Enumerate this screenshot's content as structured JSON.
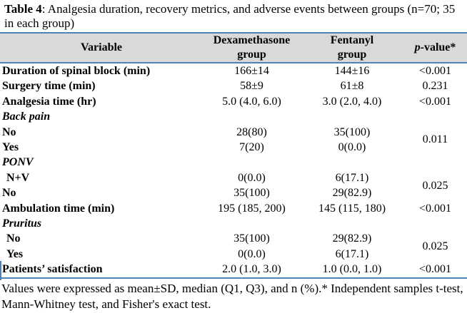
{
  "colors": {
    "rule_blue": "#4f81bd",
    "header_bg": "#d9d9d9",
    "text": "#000000"
  },
  "caption": {
    "label": "Table 4",
    "text": ": Analgesia duration, recovery metrics, and adverse events between groups (n=70; 35 in each group)"
  },
  "header": {
    "variable": "Variable",
    "dexamethasone": "Dexamethasone\ngroup",
    "fentanyl": "Fentanyl\ngroup",
    "pvalue_italic": "p",
    "pvalue_rest": "-value*"
  },
  "rows": [
    {
      "label": "Duration of spinal block (min)",
      "dexa": "166±14",
      "fent": "144±16",
      "p": "<0.001"
    },
    {
      "label": "Surgery time (min)",
      "dexa": "58±9",
      "fent": "61±8",
      "p": "0.231"
    },
    {
      "label": "Analgesia time (hr)",
      "dexa": "5.0 (4.0, 6.0)",
      "fent": "3.0 (2.0, 4.0)",
      "p": "<0.001"
    },
    {
      "label": "Back pain",
      "dexa": "",
      "fent": "",
      "p": ""
    },
    {
      "label": "No",
      "dexa": "28(80)",
      "fent": "35(100)",
      "p": "0.011"
    },
    {
      "label": "Yes",
      "dexa": "7(20)",
      "fent": "0(0.0)"
    },
    {
      "label": "PONV",
      "dexa": "",
      "fent": "",
      "p": ""
    },
    {
      "label": "N+V",
      "dexa": "0(0.0)",
      "fent": "6(17.1)",
      "p": "0.025"
    },
    {
      "label": "No",
      "dexa": "35(100)",
      "fent": "29(82.9)"
    },
    {
      "label": "Ambulation time (min)",
      "dexa": "195 (185, 200)",
      "fent": "145 (115, 180)",
      "p": "<0.001"
    },
    {
      "label": "Pruritus",
      "dexa": "",
      "fent": "",
      "p": ""
    },
    {
      "label": "No",
      "dexa": "35(100)",
      "fent": "29(82.9)",
      "p": "0.025"
    },
    {
      "label": "Yes",
      "dexa": "0(0.0)",
      "fent": "6(17.1)"
    },
    {
      "label": "Patients’ satisfaction",
      "dexa": "2.0 (1.0, 3.0)",
      "fent": "1.0 (0.0, 1.0)",
      "p": "<0.001"
    }
  ],
  "footnote": "Values were expressed as mean±SD, median (Q1, Q3), and n (%).* Independent samples t-test, Mann-Whitney test, and Fisher's exact test."
}
